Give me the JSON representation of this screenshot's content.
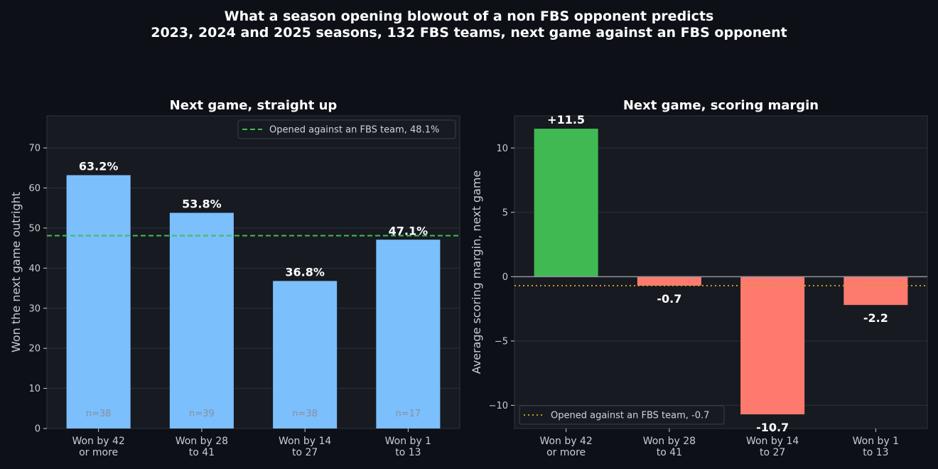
{
  "suptitle": {
    "line1": "What a season opening blowout of a non FBS opponent predicts",
    "line2": "2023, 2024 and 2025 seasons, 132 FBS teams, next game against an FBS opponent"
  },
  "colors": {
    "background": "#0d1017",
    "panel": "#171a21",
    "grid": "#2c313a",
    "bar_blue": "#7bbffd",
    "positive": "#41b953",
    "negative": "#fe7a6f",
    "ref_green": "#3fbe4f",
    "ref_gold": "#c99a1e",
    "text": "#ffffff",
    "muted": "#8a8f99"
  },
  "chart_data": [
    {
      "type": "bar",
      "title": "Next game, straight up",
      "ylabel": "Won the next game outright",
      "xlabel": "",
      "categories": [
        [
          "Won by 42",
          "or more"
        ],
        [
          "Won by 28",
          "to 41"
        ],
        [
          "Won by 14",
          "to 27"
        ],
        [
          "Won by 1",
          "to 13"
        ]
      ],
      "values": [
        63.2,
        53.8,
        36.8,
        47.1
      ],
      "value_labels": [
        "63.2%",
        "53.8%",
        "36.8%",
        "47.1%"
      ],
      "counts": [
        "n=38",
        "n=39",
        "n=38",
        "n=17"
      ],
      "ylim": [
        0,
        78
      ],
      "yticks": [
        0,
        10,
        20,
        30,
        40,
        50,
        60,
        70
      ],
      "grid": true,
      "reference_line": {
        "value": 48.1,
        "label": "Opened against an FBS team, 48.1%",
        "style": "dashed"
      },
      "legend_position": "top-right"
    },
    {
      "type": "bar",
      "title": "Next game, scoring margin",
      "ylabel": "Average scoring margin, next game",
      "xlabel": "",
      "categories": [
        [
          "Won by 42",
          "or more"
        ],
        [
          "Won by 28",
          "to 41"
        ],
        [
          "Won by 14",
          "to 27"
        ],
        [
          "Won by 1",
          "to 13"
        ]
      ],
      "values": [
        11.5,
        -0.7,
        -10.7,
        -2.2
      ],
      "value_labels": [
        "+11.5",
        "-0.7",
        "-10.7",
        "-2.2"
      ],
      "ylim": [
        -11.8,
        12.5
      ],
      "yticks": [
        -10,
        -5,
        0,
        5,
        10
      ],
      "ytick_labels": [
        "−10",
        "−5",
        "0",
        "5",
        "10"
      ],
      "grid": true,
      "zero_line": true,
      "reference_line": {
        "value": -0.7,
        "label": "Opened against an FBS team, -0.7",
        "style": "dotted"
      },
      "legend_position": "bottom-left"
    }
  ]
}
